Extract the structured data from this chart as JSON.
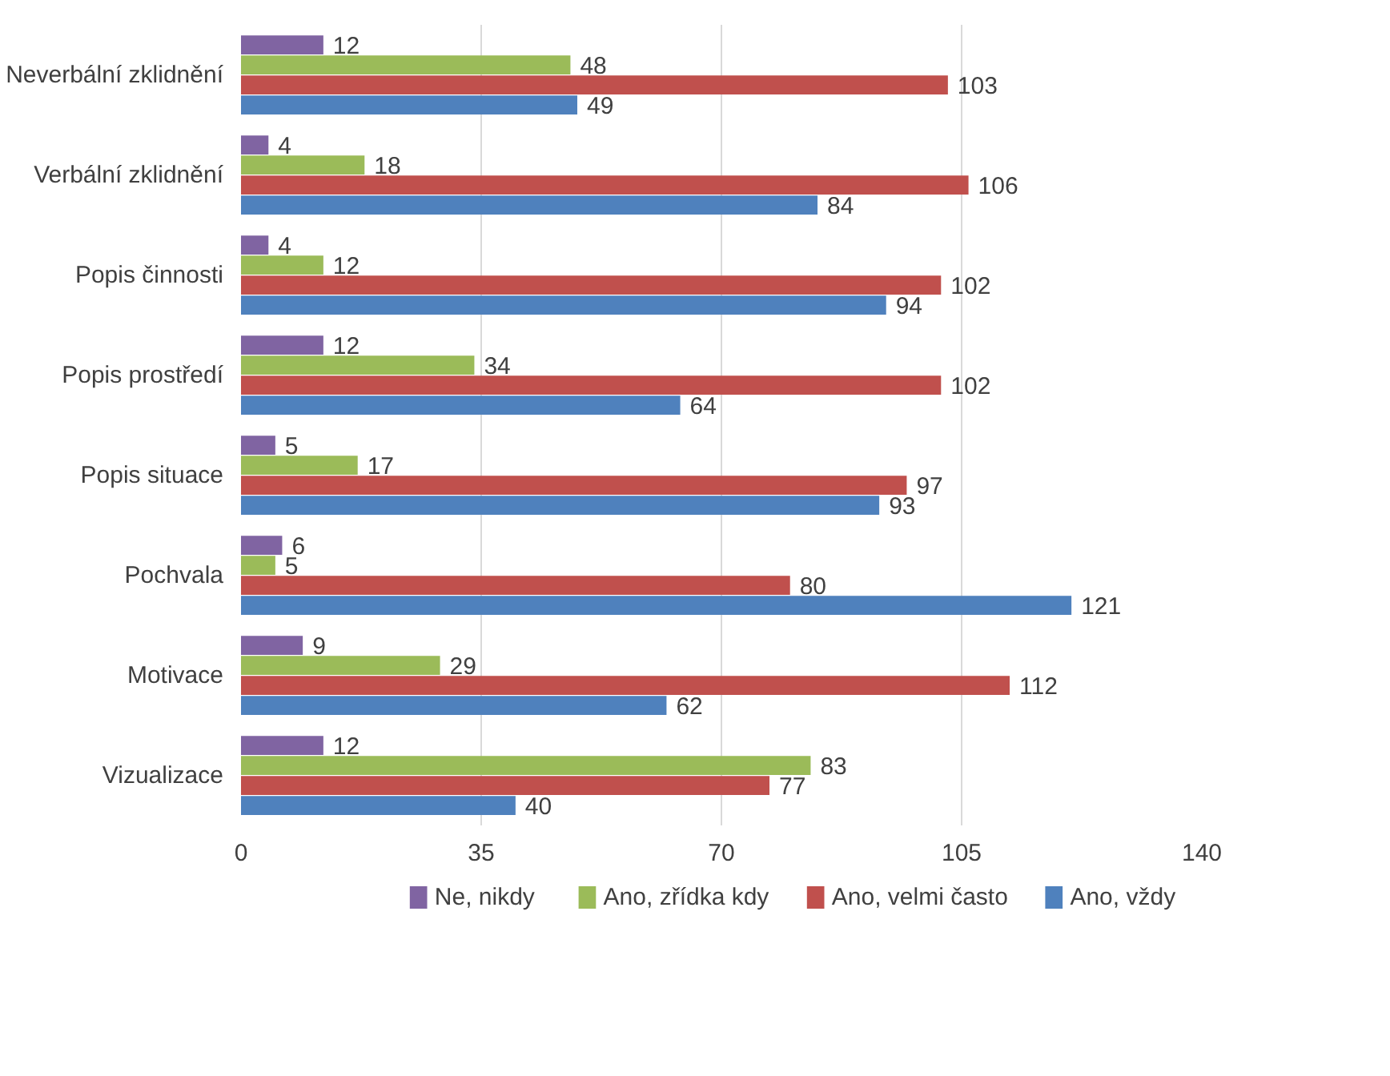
{
  "chart_data": {
    "type": "bar",
    "orientation": "horizontal",
    "categories": [
      "Neverbální zklidnění",
      "Verbální zklidnění",
      "Popis činnosti",
      "Popis prostředí",
      "Popis situace",
      "Pochvala",
      "Motivace",
      "Vizualizace"
    ],
    "series": [
      {
        "name": "Ne, nikdy",
        "color": "#8064a2",
        "values": [
          12,
          4,
          4,
          12,
          5,
          6,
          9,
          12
        ]
      },
      {
        "name": "Ano, zřídka kdy",
        "color": "#9bbb59",
        "values": [
          48,
          18,
          12,
          34,
          17,
          5,
          29,
          83
        ]
      },
      {
        "name": "Ano, velmi často",
        "color": "#c0504d",
        "values": [
          103,
          106,
          102,
          102,
          97,
          80,
          112,
          77
        ]
      },
      {
        "name": "Ano, vždy",
        "color": "#4f81bd",
        "values": [
          49,
          84,
          94,
          64,
          93,
          121,
          62,
          40
        ]
      }
    ],
    "xlim": [
      0,
      140
    ],
    "xticks": [
      0,
      35,
      70,
      105,
      140
    ],
    "grid": "x",
    "legend": "bottom",
    "data_labels": true
  }
}
